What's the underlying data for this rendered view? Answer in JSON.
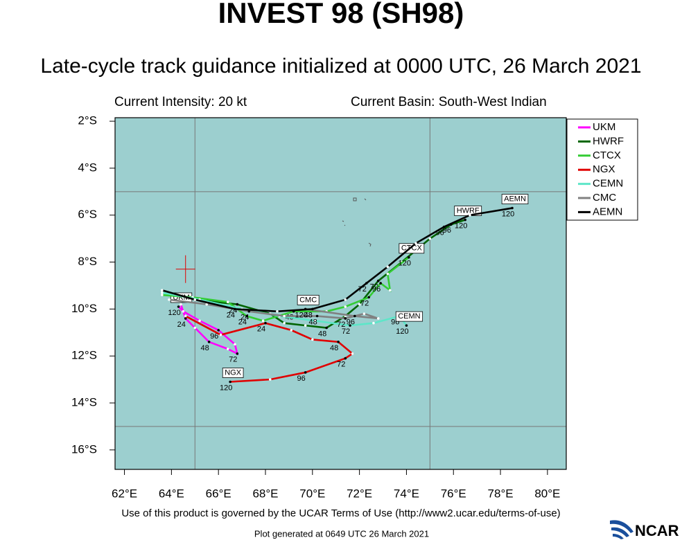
{
  "header": {
    "title": "INVEST 98 (SH98)",
    "subtitle": "Late-cycle track guidance initialized at 0000 UTC, 26 March 2021",
    "intensity": "Current Intensity: 20 kt",
    "basin": "Current Basin: South-West Indian"
  },
  "footer": {
    "terms": "Use of this product is governed by the UCAR Terms of Use (http://www2.ucar.edu/terms-of-use)",
    "generated": "Plot generated at 0649 UTC   26 March 2021",
    "logo": "NCAR"
  },
  "chart_data": {
    "type": "track",
    "xlim": [
      61.6,
      80.8
    ],
    "ylim": [
      -1.85,
      -16.83
    ],
    "xticks": [
      {
        "value": 62,
        "label": "62°E"
      },
      {
        "value": 64,
        "label": "64°E"
      },
      {
        "value": 66,
        "label": "66°E"
      },
      {
        "value": 68,
        "label": "68°E"
      },
      {
        "value": 70,
        "label": "70°E"
      },
      {
        "value": 72,
        "label": "72°E"
      },
      {
        "value": 74,
        "label": "74°E"
      },
      {
        "value": 76,
        "label": "76°E"
      },
      {
        "value": 78,
        "label": "78°E"
      },
      {
        "value": 80,
        "label": "80°E"
      }
    ],
    "yticks": [
      {
        "value": -2,
        "label": "2°S"
      },
      {
        "value": -4,
        "label": "4°S"
      },
      {
        "value": -6,
        "label": "6°S"
      },
      {
        "value": -8,
        "label": "8°S"
      },
      {
        "value": -10,
        "label": "10°S"
      },
      {
        "value": -12,
        "label": "12°S"
      },
      {
        "value": -14,
        "label": "14°S"
      },
      {
        "value": -16,
        "label": "16°S"
      }
    ],
    "grid_lon": [
      65,
      75
    ],
    "grid_lat": [
      -5,
      -15
    ],
    "current_position": {
      "lon": 64.6,
      "lat": -8.3
    },
    "series": [
      {
        "name": "UKM",
        "color": "#ff00ff",
        "x": [
          64.4,
          64.6,
          65.0,
          65.6,
          66.4,
          66.8,
          66.7,
          66.0,
          65.2,
          64.5,
          64.3
        ],
        "y": [
          -9.8,
          -10.4,
          -10.8,
          -11.4,
          -11.7,
          -11.9,
          -11.5,
          -10.9,
          -10.5,
          -10.1,
          -9.9
        ],
        "labels": [
          null,
          24,
          null,
          48,
          null,
          72,
          null,
          96,
          null,
          null,
          120
        ]
      },
      {
        "name": "HWRF",
        "color": "#006400",
        "x": [
          63.6,
          65.0,
          66.8,
          68.2,
          68.8,
          69.7,
          70.6,
          71.4,
          72.0,
          72.8,
          73.8,
          75.0,
          75.9,
          76.5
        ],
        "y": [
          -9.2,
          -9.6,
          -9.8,
          -10.2,
          -10.6,
          -10.7,
          -10.8,
          -10.3,
          -9.8,
          -8.8,
          -8.0,
          -7.0,
          -6.4,
          -6.2
        ],
        "labels": [
          null,
          null,
          24,
          null,
          null,
          null,
          48,
          null,
          null,
          72,
          null,
          null,
          96,
          120
        ]
      },
      {
        "name": "CTCX",
        "color": "#33cc33",
        "x": [
          63.6,
          64.9,
          66.4,
          67.2,
          67.9,
          69.2,
          70.6,
          71.4,
          72.4,
          72.9,
          73.3,
          73.2,
          74.1
        ],
        "y": [
          -9.4,
          -9.5,
          -9.7,
          -10.3,
          -10.5,
          -10.1,
          -10.1,
          -9.9,
          -9.5,
          -8.9,
          -9.2,
          -8.5,
          -7.8
        ],
        "labels": [
          null,
          null,
          null,
          24,
          null,
          48,
          null,
          null,
          72,
          96,
          null,
          null,
          120
        ]
      },
      {
        "name": "NGX",
        "color": "#e00000",
        "x": [
          64.6,
          66.1,
          68.0,
          69.1,
          70.0,
          71.1,
          71.7,
          71.4,
          69.7,
          68.2,
          66.5
        ],
        "y": [
          -10.3,
          -11.1,
          -10.6,
          -10.9,
          -11.3,
          -11.4,
          -11.9,
          -12.1,
          -12.7,
          -13.0,
          -13.1
        ],
        "labels": [
          null,
          null,
          24,
          null,
          null,
          48,
          null,
          72,
          96,
          null,
          120
        ]
      },
      {
        "name": "CEMN",
        "color": "#5de6c8",
        "x": [
          63.6,
          65.2,
          67.0,
          68.6,
          70.1,
          71.6,
          72.6,
          73.7,
          74.0
        ],
        "y": [
          -9.3,
          -9.6,
          -10.0,
          -10.3,
          -10.5,
          -10.7,
          -10.6,
          -10.3,
          -10.7
        ],
        "labels": [
          null,
          null,
          null,
          null,
          null,
          72,
          null,
          96,
          120
        ]
      },
      {
        "name": "CMC",
        "color": "#808080",
        "x": [
          63.9,
          65.5,
          67.3,
          68.8,
          70.2,
          71.4,
          72.2,
          72.8,
          71.8,
          69.7
        ],
        "y": [
          -9.6,
          -9.8,
          -10.1,
          -10.3,
          -10.3,
          -10.4,
          -10.2,
          -10.4,
          -10.3,
          -10.0
        ],
        "labels": [
          null,
          null,
          24,
          null,
          48,
          72,
          null,
          null,
          96,
          120
        ]
      },
      {
        "name": "AEMN",
        "color": "#000000",
        "x": [
          63.6,
          65.0,
          66.7,
          68.5,
          70.0,
          71.4,
          72.3,
          73.2,
          74.4,
          75.6,
          76.7,
          78.5
        ],
        "y": [
          -9.2,
          -9.6,
          -10.0,
          -10.1,
          -10.0,
          -9.6,
          -8.9,
          -8.2,
          -7.2,
          -6.5,
          -6.0,
          -5.7
        ],
        "labels": [
          null,
          null,
          24,
          null,
          48,
          null,
          72,
          null,
          null,
          96,
          null,
          120
        ]
      }
    ]
  }
}
